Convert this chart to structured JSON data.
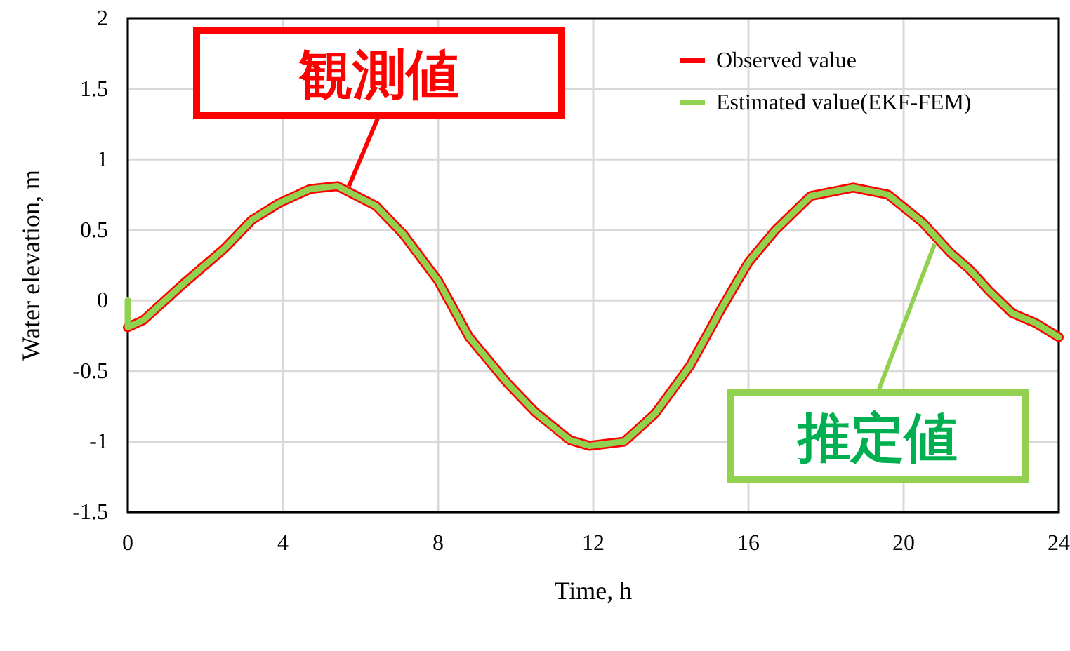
{
  "chart_data": {
    "type": "line",
    "xlabel": "Time, h",
    "ylabel": "Water elevation, m",
    "xlim": [
      0,
      24
    ],
    "xticks": [
      0,
      4,
      8,
      12,
      16,
      20,
      24
    ],
    "ylim": [
      -1.5,
      2
    ],
    "yticks": [
      -1.5,
      -1,
      -0.5,
      0,
      0.5,
      1,
      1.5,
      2
    ],
    "grid": true,
    "legend": "top right",
    "series": [
      {
        "name": "Observed value",
        "color": "#ff0000",
        "x": [
          0,
          0.4,
          1.4,
          2.5,
          3.2,
          3.9,
          4.7,
          5.4,
          6.4,
          7.1,
          8.0,
          8.8,
          9.8,
          10.5,
          11.4,
          11.9,
          12.8,
          13.6,
          14.5,
          15.3,
          16.0,
          16.7,
          17.6,
          18.7,
          19.6,
          20.5,
          21.2,
          21.7,
          22.2,
          22.8,
          23.4,
          24
        ],
        "values": [
          -0.19,
          -0.14,
          0.11,
          0.37,
          0.57,
          0.69,
          0.79,
          0.81,
          0.67,
          0.47,
          0.14,
          -0.26,
          -0.59,
          -0.79,
          -0.99,
          -1.03,
          -1.0,
          -0.8,
          -0.46,
          -0.06,
          0.27,
          0.5,
          0.74,
          0.8,
          0.75,
          0.55,
          0.34,
          0.22,
          0.07,
          -0.09,
          -0.16,
          -0.26
        ]
      },
      {
        "name": "Estimated value(EKF-FEM)",
        "color": "#92d050",
        "x": [
          0,
          0,
          0.4,
          1.4,
          2.5,
          3.2,
          3.9,
          4.7,
          5.4,
          6.4,
          7.1,
          8.0,
          8.8,
          9.8,
          10.5,
          11.4,
          11.9,
          12.8,
          13.6,
          14.5,
          15.3,
          16.0,
          16.7,
          17.6,
          18.7,
          19.6,
          20.5,
          21.2,
          21.7,
          22.2,
          22.8,
          23.4,
          24
        ],
        "values": [
          0.0,
          -0.19,
          -0.14,
          0.11,
          0.37,
          0.57,
          0.69,
          0.79,
          0.81,
          0.67,
          0.47,
          0.14,
          -0.26,
          -0.59,
          -0.79,
          -0.99,
          -1.03,
          -1.0,
          -0.8,
          -0.46,
          -0.06,
          0.27,
          0.5,
          0.74,
          0.8,
          0.75,
          0.55,
          0.34,
          0.22,
          0.07,
          -0.09,
          -0.16,
          -0.26
        ]
      }
    ],
    "annotations": [
      {
        "text": "観測値",
        "x": 5.7,
        "y": 0.81
      },
      {
        "text": "推定値",
        "x": 20.8,
        "y": 0.4
      }
    ]
  }
}
